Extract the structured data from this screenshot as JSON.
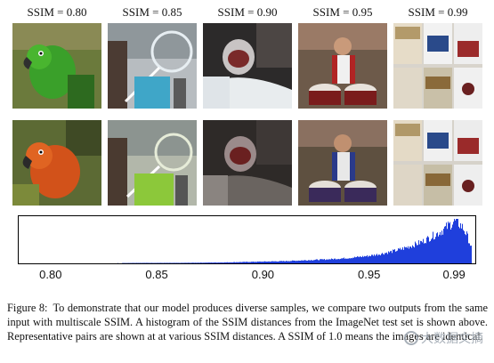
{
  "columns": [
    {
      "label": "SSIM = 0.80",
      "top_image": "green parrot",
      "bottom_image": "orange-red parrot"
    },
    {
      "label": "SSIM = 0.85",
      "top_image": "child blowing bubble",
      "bottom_image": "child blowing bubble"
    },
    {
      "label": "SSIM = 0.90",
      "top_image": "person with helmet",
      "bottom_image": "person with helmet"
    },
    {
      "label": "SSIM = 0.95",
      "top_image": "marching drummer",
      "bottom_image": "marching drummer"
    },
    {
      "label": "SSIM = 0.99",
      "top_image": "cigarette packs",
      "bottom_image": "cigarette packs"
    }
  ],
  "chart_data": {
    "type": "bar",
    "title": "",
    "xlabel": "",
    "ylabel": "",
    "xlim": [
      0.785,
      1.0
    ],
    "x_ticks": [
      "0.80",
      "0.85",
      "0.90",
      "0.95",
      "0.99"
    ],
    "x_tick_values": [
      0.8,
      0.85,
      0.9,
      0.95,
      0.99
    ],
    "bar_color": "#1f3fdc",
    "series": [
      {
        "x": [
          0.8,
          0.82,
          0.84,
          0.86,
          0.88,
          0.9,
          0.91,
          0.92,
          0.93,
          0.94,
          0.95,
          0.955,
          0.96,
          0.965,
          0.97,
          0.975,
          0.98,
          0.983,
          0.986,
          0.988,
          0.99,
          0.992,
          0.994,
          0.996,
          0.998
        ],
        "values": [
          0.0,
          0.0,
          0.01,
          0.01,
          0.02,
          0.04,
          0.05,
          0.07,
          0.09,
          0.12,
          0.17,
          0.21,
          0.26,
          0.32,
          0.4,
          0.49,
          0.62,
          0.7,
          0.8,
          0.88,
          0.95,
          0.9,
          0.8,
          0.62,
          0.35
        ]
      }
    ]
  },
  "caption": {
    "lead": "Figure 8:",
    "text": "To demonstrate that our model produces diverse samples, we compare two outputs from the same input with multiscale SSIM. A histogram of the SSIM distances from the ImageNet test set is shown above. Representative pairs are shown at at various SSIM distances. A SSIM of 1.0 means the images are identical."
  },
  "watermark": {
    "text": "大数据文摘"
  },
  "colors": {
    "histogram": "#1f3fdc",
    "watermark": "#9aa3ad"
  }
}
